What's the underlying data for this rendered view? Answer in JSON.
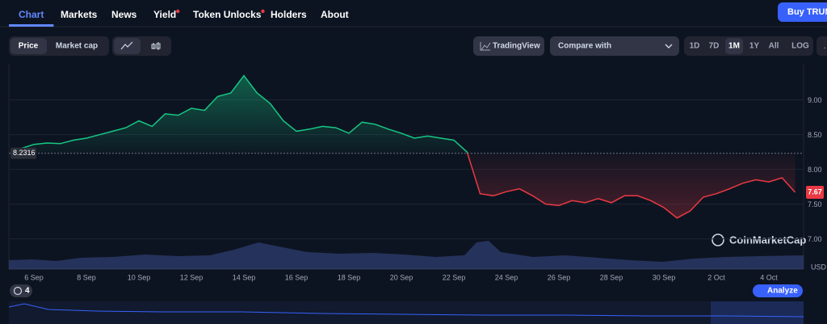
{
  "nav": {
    "tabs": [
      {
        "label": "Chart",
        "active": true
      },
      {
        "label": "Markets"
      },
      {
        "label": "News"
      },
      {
        "label": "Yield",
        "dot": true
      },
      {
        "label": "Token Unlocks",
        "dot": true
      },
      {
        "label": "Holders"
      },
      {
        "label": "About"
      }
    ],
    "buy_button": "Buy TRUMP"
  },
  "toolbar": {
    "toggle": [
      "Price",
      "Market cap"
    ],
    "tradingview": "TradingView",
    "compare": "Compare with",
    "ranges": [
      "1D",
      "7D",
      "1M",
      "1Y",
      "All"
    ],
    "active_range": "1M",
    "log": "LOG"
  },
  "chart_data": {
    "type": "line",
    "categories": [
      null,
      "6 Sep",
      null,
      null,
      null,
      "8 Sep",
      null,
      null,
      null,
      "10 Sep",
      null,
      null,
      null,
      "12 Sep",
      null,
      null,
      null,
      "14 Sep",
      null,
      null,
      null,
      "16 Sep",
      null,
      null,
      null,
      "18 Sep",
      null,
      null,
      null,
      "20 Sep",
      null,
      null,
      null,
      "22 Sep",
      null,
      null,
      null,
      "24 Sep",
      null,
      null,
      null,
      "26 Sep",
      null,
      null,
      null,
      "28 Sep",
      null,
      null,
      null,
      "30 Sep",
      null,
      null,
      null,
      "2 Oct",
      null,
      null,
      null,
      "4 Oct",
      null,
      null
    ],
    "values": [
      8.3,
      8.36,
      8.38,
      8.37,
      8.42,
      8.45,
      8.5,
      8.55,
      8.6,
      8.7,
      8.62,
      8.8,
      8.78,
      8.88,
      8.85,
      9.05,
      9.1,
      9.35,
      9.1,
      8.95,
      8.7,
      8.55,
      8.58,
      8.62,
      8.6,
      8.52,
      8.68,
      8.65,
      8.58,
      8.52,
      8.45,
      8.48,
      8.45,
      8.42,
      8.25,
      7.65,
      7.62,
      7.68,
      7.72,
      7.62,
      7.5,
      7.48,
      7.55,
      7.52,
      7.58,
      7.52,
      7.62,
      7.62,
      7.55,
      7.45,
      7.3,
      7.4,
      7.6,
      7.65,
      7.72,
      7.8,
      7.85,
      7.82,
      7.88,
      7.67
    ],
    "reference": 8.2316,
    "up_color": "#16c784",
    "down_color": "#ea3943",
    "ylim": [
      6.6,
      9.45
    ],
    "yticks": [
      {
        "value": 9,
        "label": "9.00"
      },
      {
        "value": 8.5,
        "label": "8.50"
      },
      {
        "value": 8,
        "label": "8.00"
      },
      {
        "value": 7.5,
        "label": "7.50"
      },
      {
        "value": 7,
        "label": "7.00"
      }
    ],
    "y_label": "USD",
    "grid": true
  },
  "watermark": "CoinMarketCap",
  "footer": {
    "history_count": "4",
    "analyze": "Analyze"
  }
}
